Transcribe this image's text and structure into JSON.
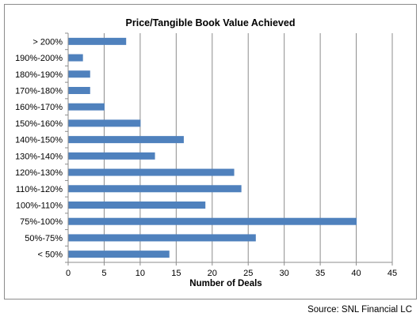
{
  "chart_data": {
    "type": "bar",
    "orientation": "horizontal",
    "title": "Price/Tangible Book Value Achieved",
    "xlabel": "Number of Deals",
    "ylabel": "",
    "categories": [
      "> 200%",
      "190%-200%",
      "180%-190%",
      "170%-180%",
      "160%-170%",
      "150%-160%",
      "140%-150%",
      "130%-140%",
      "120%-130%",
      "110%-120%",
      "100%-110%",
      "75%-100%",
      "50%-75%",
      "< 50%"
    ],
    "values": [
      8,
      2,
      3,
      3,
      5,
      10,
      16,
      12,
      23,
      24,
      19,
      40,
      26,
      14
    ],
    "xlim": [
      0,
      45
    ],
    "xticks": [
      0,
      5,
      10,
      15,
      20,
      25,
      30,
      35,
      40,
      45
    ],
    "grid": "vertical",
    "legend": "none",
    "bar_color": "#4f81bd"
  },
  "source": "Source: SNL Financial LC"
}
